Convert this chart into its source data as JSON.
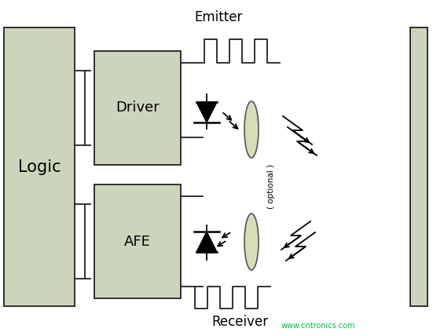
{
  "bg_color": "#ffffff",
  "box_fill": "#cdd4bc",
  "box_edge": "#222222",
  "text_color": "#000000",
  "lens_fill": "#d8ddb8",
  "lens_edge": "#555555",
  "title_emitter": "Emitter",
  "title_receiver": "Receiver",
  "watermark": "www.cntronics.com",
  "optional_text": "( optional )"
}
